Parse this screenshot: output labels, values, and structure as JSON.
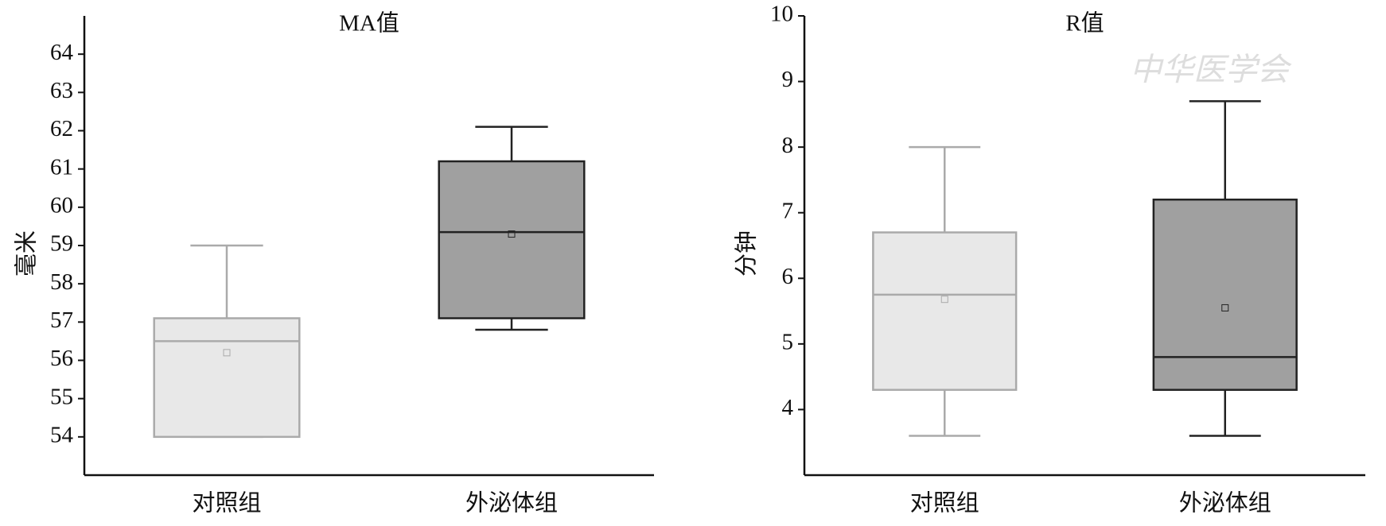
{
  "watermark": "中华医学会",
  "chart_data": [
    {
      "type": "box",
      "title": "MA值",
      "y_label": "毫米",
      "categories": [
        "对照组",
        "外泌体组"
      ],
      "ylim": [
        53,
        65
      ],
      "yticks": [
        54,
        55,
        56,
        57,
        58,
        59,
        60,
        61,
        62,
        63,
        64
      ],
      "boxes": [
        {
          "low": 54,
          "q1": 54,
          "median": 56.5,
          "q3": 57.1,
          "high": 59,
          "mean": 56.2,
          "fill": "#e8e8e8",
          "stroke": "#aaaaaa"
        },
        {
          "low": 56.8,
          "q1": 57.1,
          "median": 59.35,
          "q3": 61.2,
          "high": 62.1,
          "mean": 59.3,
          "fill": "#a0a0a0",
          "stroke": "#222222"
        }
      ]
    },
    {
      "type": "box",
      "title": "R值",
      "y_label": "分钟",
      "categories": [
        "对照组",
        "外泌体组"
      ],
      "ylim": [
        3,
        10
      ],
      "yticks": [
        4,
        5,
        6,
        7,
        8,
        9,
        10
      ],
      "boxes": [
        {
          "low": 3.6,
          "q1": 4.3,
          "median": 5.75,
          "q3": 6.7,
          "high": 8.0,
          "mean": 5.68,
          "fill": "#e8e8e8",
          "stroke": "#aaaaaa"
        },
        {
          "low": 3.6,
          "q1": 4.3,
          "median": 4.8,
          "q3": 7.2,
          "high": 8.7,
          "mean": 5.55,
          "fill": "#a0a0a0",
          "stroke": "#222222"
        }
      ]
    }
  ]
}
